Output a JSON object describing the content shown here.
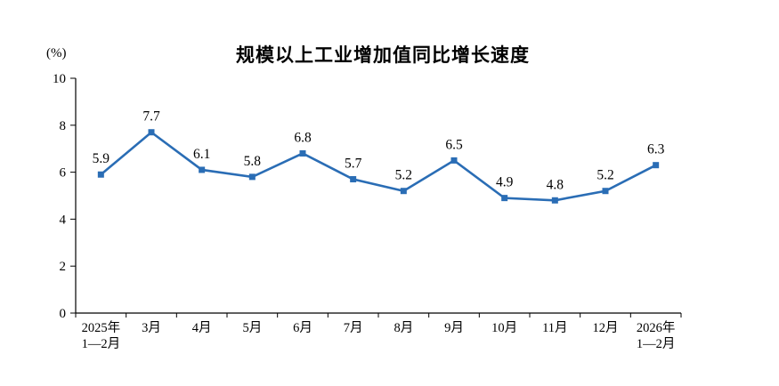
{
  "chart_data": {
    "type": "line",
    "title": "规模以上工业增加值同比增长速度",
    "ylabel": "(%)",
    "categories": [
      "2025年\n1—2月",
      "3月",
      "4月",
      "5月",
      "6月",
      "7月",
      "8月",
      "9月",
      "10月",
      "11月",
      "12月",
      "2026年\n1—2月"
    ],
    "values": [
      5.9,
      7.7,
      6.1,
      5.8,
      6.8,
      5.7,
      5.2,
      6.5,
      4.9,
      4.8,
      5.2,
      6.3
    ],
    "xlabel": "",
    "ylim": [
      0,
      10
    ],
    "ytick_step": 2,
    "grid": false,
    "legend": "none",
    "line_color": "#2A6DB5",
    "axis_color": "#000000",
    "marker": "square",
    "data_labels_shown": true
  }
}
